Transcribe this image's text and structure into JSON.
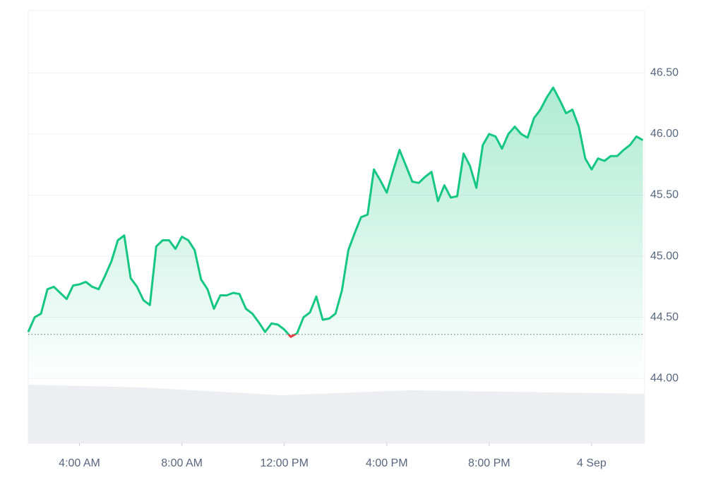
{
  "chart_data": {
    "type": "line",
    "x": [
      2,
      2.25,
      2.5,
      2.75,
      3,
      3.25,
      3.5,
      3.75,
      4,
      4.25,
      4.5,
      4.75,
      5,
      5.25,
      5.5,
      5.75,
      6,
      6.25,
      6.5,
      6.75,
      7,
      7.25,
      7.5,
      7.75,
      8,
      8.25,
      8.5,
      8.75,
      9,
      9.25,
      9.5,
      9.75,
      10,
      10.25,
      10.5,
      10.75,
      11,
      11.25,
      11.5,
      11.75,
      12,
      12.25,
      12.5,
      12.75,
      13,
      13.25,
      13.5,
      13.75,
      14,
      14.25,
      14.5,
      14.75,
      15,
      15.25,
      15.5,
      15.75,
      16,
      16.25,
      16.5,
      16.75,
      17,
      17.25,
      17.5,
      17.75,
      18,
      18.25,
      18.5,
      18.75,
      19,
      19.25,
      19.5,
      19.75,
      20,
      20.25,
      20.5,
      20.75,
      21,
      21.25,
      21.5,
      21.75,
      22,
      22.25,
      22.5,
      22.75,
      23,
      23.25,
      23.5,
      23.75,
      24,
      24.25,
      24.5,
      24.75,
      25,
      25.25,
      25.5,
      25.75,
      26
    ],
    "series": [
      {
        "color": "#16c784",
        "values": [
          44.38,
          44.5,
          44.53,
          44.73,
          44.75,
          44.7,
          44.65,
          44.76,
          44.77,
          44.79,
          44.75,
          44.73,
          44.84,
          44.96,
          45.13,
          45.17,
          44.82,
          44.75,
          44.64,
          44.6,
          45.08,
          45.13,
          45.13,
          45.06,
          45.16,
          45.13,
          45.05,
          44.81,
          44.73,
          44.57,
          44.68,
          44.68,
          44.7,
          44.69,
          44.57,
          44.53,
          44.46,
          44.38,
          44.45,
          44.44,
          44.4,
          44.34,
          44.37,
          44.5,
          44.54,
          44.67,
          44.48,
          44.49,
          44.53,
          44.72,
          45.05,
          45.19,
          45.32,
          45.34,
          45.71,
          45.62,
          45.52,
          45.7,
          45.87,
          45.74,
          45.61,
          45.6,
          45.65,
          45.69,
          45.45,
          45.58,
          45.48,
          45.49,
          45.84,
          45.74,
          45.56,
          45.91,
          46.0,
          45.98,
          45.88,
          46.0,
          46.06,
          46.0,
          45.97,
          46.13,
          46.2,
          46.3,
          46.38,
          46.28,
          46.17,
          46.2,
          46.06,
          45.8,
          45.71,
          45.8,
          45.78,
          45.82,
          45.82,
          45.87,
          45.91,
          45.98,
          45.95
        ]
      }
    ],
    "baseline": 44.36,
    "below_color": "#ea3943",
    "xlim": [
      2,
      26.07
    ],
    "xticks": [
      {
        "value": 4,
        "label": "4:00 AM"
      },
      {
        "value": 8,
        "label": "8:00 AM"
      },
      {
        "value": 12,
        "label": "12:00 PM"
      },
      {
        "value": 16,
        "label": "4:00 PM"
      },
      {
        "value": 20,
        "label": "8:00 PM"
      },
      {
        "value": 24,
        "label": "4 Sep"
      }
    ],
    "ylim": [
      43.47,
      47.01
    ],
    "yticks": [
      {
        "value": 44,
        "label": "44.00"
      },
      {
        "value": 44.5,
        "label": "44.50"
      },
      {
        "value": 45,
        "label": "45.00"
      },
      {
        "value": 45.5,
        "label": "45.50"
      },
      {
        "value": 46,
        "label": "46.00"
      },
      {
        "value": 46.5,
        "label": "46.50"
      }
    ],
    "grid": true
  }
}
